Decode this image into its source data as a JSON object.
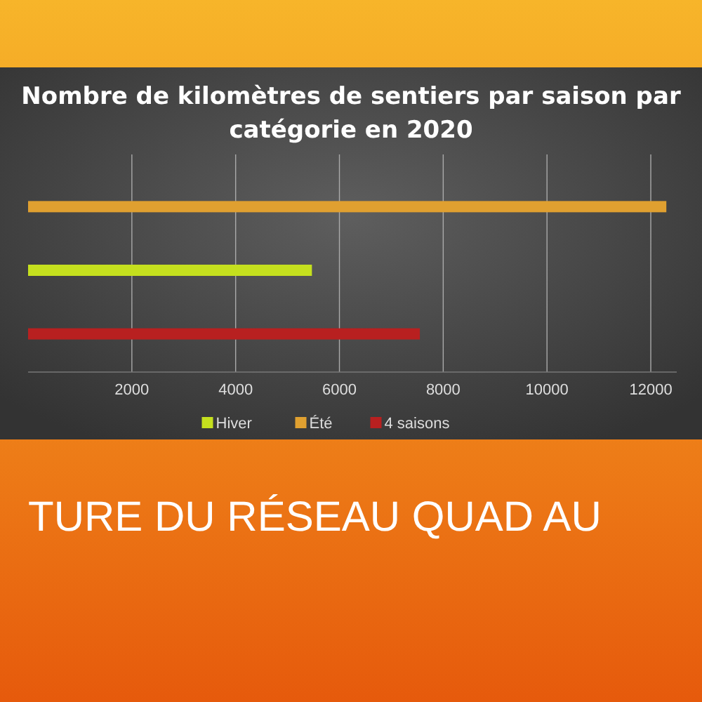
{
  "chart_data": {
    "type": "bar",
    "orientation": "horizontal",
    "title": "Nombre de kilomètres de sentiers par saison par catégorie en 2020",
    "categories": [
      null,
      null,
      null
    ],
    "series": [
      {
        "name": "Hiver",
        "color": "#c5e01e",
        "values": [
          null,
          5470,
          null
        ]
      },
      {
        "name": "Été",
        "color": "#e0a030",
        "values": [
          12300,
          null,
          null
        ]
      },
      {
        "name": "4 saisons",
        "color": "#b82020",
        "values": [
          null,
          null,
          7550
        ]
      }
    ],
    "xlim": [
      0,
      12500
    ],
    "xticks": [
      2000,
      4000,
      6000,
      8000,
      10000,
      12000
    ],
    "grid": "x",
    "legend": "bottom",
    "annotations": [
      "TURE DU RÉSEAU QUAD AU"
    ]
  }
}
